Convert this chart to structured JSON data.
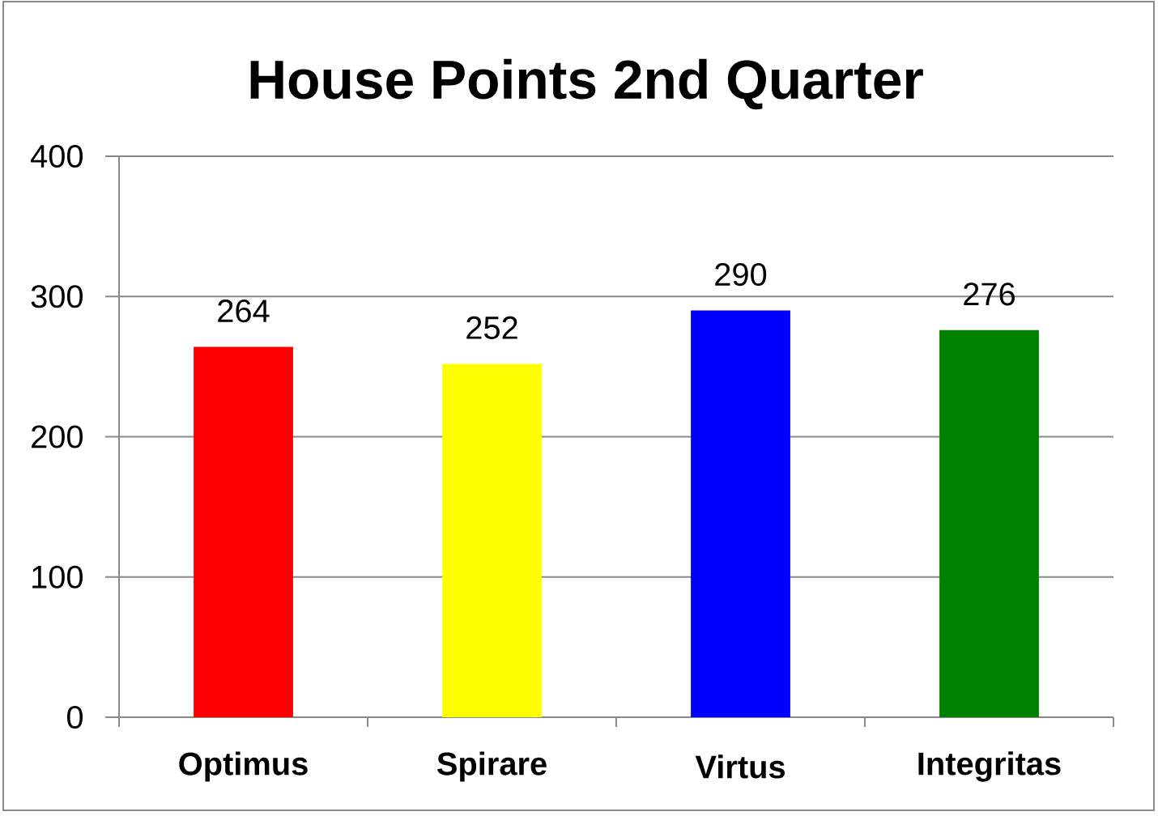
{
  "chart_data": {
    "type": "bar",
    "title": "House Points 2nd Quarter",
    "categories": [
      "Optimus",
      "Spirare",
      "Virtus",
      "Integritas"
    ],
    "values": [
      264,
      252,
      290,
      276
    ],
    "colors": [
      "#ff0000",
      "#ffff00",
      "#0000ff",
      "#008000"
    ],
    "ylim": [
      0,
      400
    ],
    "yticks": [
      0,
      100,
      200,
      300,
      400
    ],
    "grid": "y",
    "data_labels": true
  }
}
